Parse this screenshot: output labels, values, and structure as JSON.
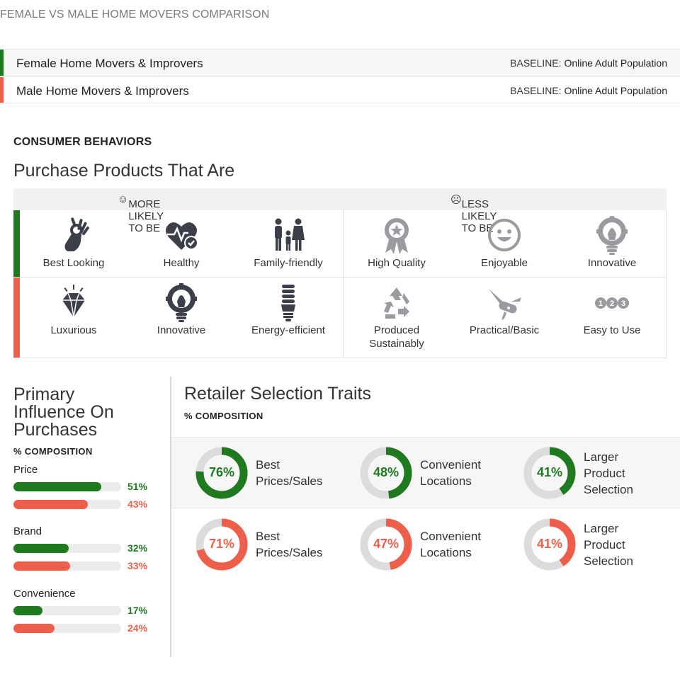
{
  "page_title": "FEMALE VS MALE HOME MOVERS COMPARISON",
  "colors": {
    "female": "#1f7a1f",
    "male": "#ee5f4b",
    "icon": "#3a3f4a",
    "icon_muted": "#9a9aa0"
  },
  "segments": [
    {
      "name": "Female Home Movers & Improvers",
      "baseline_label": "BASELINE:",
      "baseline_value": "Online Adult Population"
    },
    {
      "name": "Male Home Movers & Improvers",
      "baseline_label": "BASELINE:",
      "baseline_value": "Online Adult Population"
    }
  ],
  "consumer_behaviors": {
    "heading": "CONSUMER BEHAVIORS",
    "title": "Purchase Products That Are",
    "more_likely": "MORE LIKELY TO BE",
    "less_likely": "LESS LIKELY TO BE",
    "female": {
      "more": [
        {
          "label": "Best Looking",
          "icon": "ok-hand-icon"
        },
        {
          "label": "Healthy",
          "icon": "heart-check-icon"
        },
        {
          "label": "Family-friendly",
          "icon": "family-icon"
        }
      ],
      "less": [
        {
          "label": "High Quality",
          "icon": "award-ribbon-icon"
        },
        {
          "label": "Enjoyable",
          "icon": "smiley-icon"
        },
        {
          "label": "Innovative",
          "icon": "lightbulb-gear-icon"
        }
      ]
    },
    "male": {
      "more": [
        {
          "label": "Luxurious",
          "icon": "diamond-icon"
        },
        {
          "label": "Innovative",
          "icon": "lightbulb-gear-icon"
        },
        {
          "label": "Energy-efficient",
          "icon": "cfl-bulb-icon"
        }
      ],
      "less": [
        {
          "label": "Produced Sustainably",
          "icon": "recycle-icon"
        },
        {
          "label": "Practical/Basic",
          "icon": "pocket-knife-icon"
        },
        {
          "label": "Easy to Use",
          "icon": "one-two-three-icon"
        }
      ]
    }
  },
  "primary_influence": {
    "title_lines": [
      "Primary",
      "Influence On",
      "Purchases"
    ],
    "composition_label": "% COMPOSITION",
    "items": [
      {
        "name": "Price",
        "female": 51,
        "male": 43,
        "female_text": "51%",
        "male_text": "43%"
      },
      {
        "name": "Brand",
        "female": 32,
        "male": 33,
        "female_text": "32%",
        "male_text": "33%"
      },
      {
        "name": "Convenience",
        "female": 17,
        "male": 24,
        "female_text": "17%",
        "male_text": "24%"
      }
    ]
  },
  "retailer_traits": {
    "title": "Retailer Selection Traits",
    "composition_label": "% COMPOSITION",
    "female": [
      {
        "value": 76,
        "text": "76%",
        "label_lines": [
          "Best",
          "Prices/Sales"
        ]
      },
      {
        "value": 48,
        "text": "48%",
        "label_lines": [
          "Convenient",
          "Locations"
        ]
      },
      {
        "value": 41,
        "text": "41%",
        "label_lines": [
          "Larger",
          "Product",
          "Selection"
        ]
      }
    ],
    "male": [
      {
        "value": 71,
        "text": "71%",
        "label_lines": [
          "Best",
          "Prices/Sales"
        ]
      },
      {
        "value": 47,
        "text": "47%",
        "label_lines": [
          "Convenient",
          "Locations"
        ]
      },
      {
        "value": 41,
        "text": "41%",
        "label_lines": [
          "Larger",
          "Product",
          "Selection"
        ]
      }
    ]
  }
}
